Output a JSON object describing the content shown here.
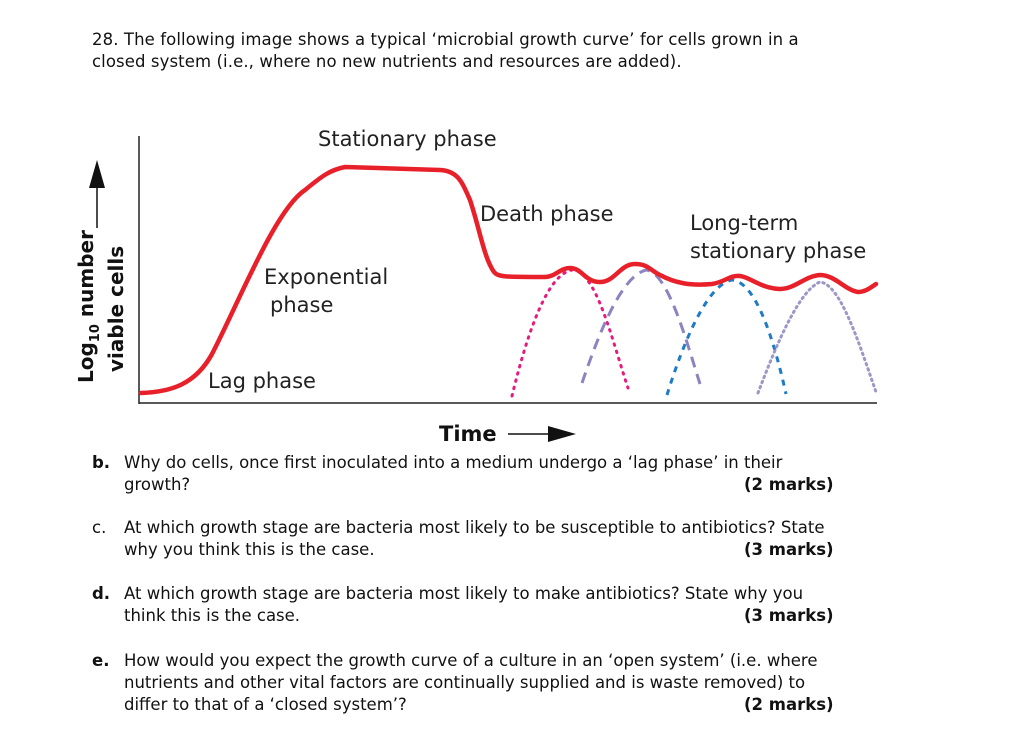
{
  "intro_text_line1": "28. The following image shows a typical ‘microbial growth curve’ for cells grown in a",
  "intro_text_line2": "closed system (i.e., where no new nutrients and resources are added).",
  "figure": {
    "labels": {
      "stationary": "Stationary phase",
      "death": "Death phase",
      "longterm_1": "Long-term",
      "longterm_2": "stationary phase",
      "exponential_1": "Exponential",
      "exponential_2": "phase",
      "lag": "Lag phase",
      "x_axis": "Time",
      "y_axis_1": "number",
      "y_axis_log": "Log",
      "y_axis_sub": "10",
      "y_axis_2": "viable cells"
    },
    "colors": {
      "main_curve": "#e8202a",
      "pink_dotted": "#e6197d",
      "purple_dashed": "#8c84c0",
      "blue_dashed": "#1f7bc4",
      "gray_dotted": "#9b97c6",
      "axis": "#222222"
    }
  },
  "questions": [
    {
      "letter": "b.",
      "bold": true,
      "line1": "Why do cells, once first inoculated into a medium undergo a ‘lag phase’ in their",
      "line2": "growth?",
      "marks": "(2 marks)"
    },
    {
      "letter": "c.",
      "bold": false,
      "line1": "At which growth stage are bacteria most likely to be susceptible to antibiotics? State",
      "line2": "why you think this is the case.",
      "marks": "(3 marks)"
    },
    {
      "letter": "d.",
      "bold": true,
      "line1": "At which growth stage are bacteria most likely to make antibiotics? State why you",
      "line2": "think this is the case.",
      "marks": "(3 marks)"
    },
    {
      "letter": "e.",
      "bold": true,
      "line1": "How would you expect the growth curve of a culture in an ‘open system’ (i.e. where",
      "line2": "nutrients and other vital factors are continually supplied and is waste removed) to",
      "line3": "differ to that of a ‘closed system’?",
      "marks": "(2 marks)"
    }
  ]
}
